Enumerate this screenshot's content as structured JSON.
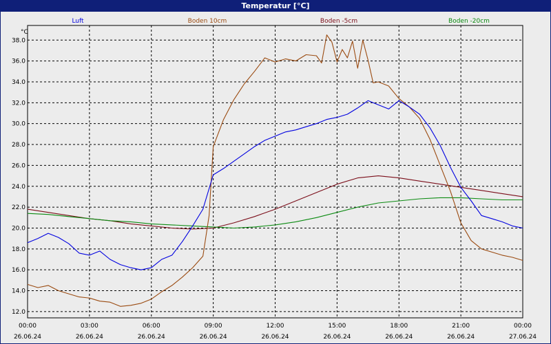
{
  "window": {
    "title": "Temperatur [°C]"
  },
  "colors": {
    "frame": "#0f1f78",
    "background": "#ececec",
    "grid": "#000000",
    "Luft": "#0000e0",
    "Boden 10cm": "#9a4a10",
    "Boden -5cm": "#7a0c18",
    "Boden -20cm": "#0a8a10"
  },
  "chart_data": {
    "type": "line",
    "title": "Temperatur [°C]",
    "ylabel": "°C",
    "ylim": [
      11.4,
      39.4
    ],
    "yticks": [
      "38.0",
      "36.0",
      "34.0",
      "32.0",
      "30.0",
      "28.0",
      "26.0",
      "24.0",
      "22.0",
      "20.0",
      "18.0",
      "16.0",
      "14.0",
      "12.0"
    ],
    "xlim": [
      0,
      24
    ],
    "xticks": [
      {
        "time": "00:00",
        "date": "26.06.24"
      },
      {
        "time": "03:00",
        "date": "26.06.24"
      },
      {
        "time": "06:00",
        "date": "26.06.24"
      },
      {
        "time": "09:00",
        "date": "26.06.24"
      },
      {
        "time": "12:00",
        "date": "26.06.24"
      },
      {
        "time": "15:00",
        "date": "26.06.24"
      },
      {
        "time": "18:00",
        "date": "26.06.24"
      },
      {
        "time": "21:00",
        "date": "26.06.24"
      },
      {
        "time": "00:00",
        "date": "27.06.24"
      }
    ],
    "grid": true,
    "legend": "top",
    "series": [
      {
        "name": "Luft",
        "x": [
          0,
          0.5,
          1,
          1.5,
          2,
          2.5,
          3,
          3.5,
          4,
          4.5,
          5,
          5.5,
          6,
          6.5,
          7,
          7.5,
          8,
          8.5,
          9,
          9.5,
          10,
          10.5,
          11,
          11.5,
          12,
          12.5,
          13,
          13.5,
          14,
          14.5,
          15,
          15.5,
          16,
          16.5,
          17,
          17.5,
          18,
          18.5,
          19,
          19.5,
          20,
          20.5,
          21,
          21.5,
          22,
          22.5,
          23,
          23.5,
          24
        ],
        "values": [
          18.6,
          19.0,
          19.5,
          19.1,
          18.5,
          17.6,
          17.4,
          17.8,
          17.0,
          16.5,
          16.2,
          16.0,
          16.2,
          17.0,
          17.4,
          18.7,
          20.2,
          21.8,
          25.1,
          25.7,
          26.4,
          27.1,
          27.8,
          28.4,
          28.8,
          29.2,
          29.4,
          29.7,
          30.0,
          30.4,
          30.6,
          30.9,
          31.5,
          32.2,
          31.8,
          31.4,
          32.2,
          31.6,
          30.9,
          29.6,
          27.9,
          25.8,
          23.9,
          22.6,
          21.2,
          20.9,
          20.6,
          20.2,
          20.0
        ]
      },
      {
        "name": "Boden 10cm",
        "x": [
          0,
          0.5,
          1,
          1.5,
          2,
          2.5,
          3,
          3.5,
          4,
          4.5,
          5,
          5.5,
          6,
          6.5,
          7,
          7.5,
          8,
          8.5,
          8.8,
          9,
          9.5,
          10,
          10.5,
          11,
          11.5,
          12,
          12.5,
          13,
          13.5,
          14,
          14.25,
          14.5,
          14.75,
          15,
          15.25,
          15.5,
          15.75,
          16,
          16.25,
          16.5,
          16.75,
          17,
          17.5,
          18,
          18.5,
          19,
          19.5,
          20,
          20.5,
          21,
          21.5,
          22,
          22.5,
          23,
          23.5,
          24
        ],
        "values": [
          14.6,
          14.3,
          14.5,
          14.0,
          13.7,
          13.4,
          13.3,
          13.0,
          12.9,
          12.5,
          12.6,
          12.8,
          13.2,
          13.9,
          14.5,
          15.3,
          16.2,
          17.3,
          21.2,
          27.8,
          30.4,
          32.3,
          33.8,
          35.0,
          36.3,
          35.9,
          36.2,
          36.0,
          36.6,
          36.5,
          35.8,
          38.5,
          37.8,
          35.9,
          37.1,
          36.3,
          37.9,
          35.3,
          38.0,
          36.1,
          33.9,
          34.0,
          33.6,
          32.4,
          31.6,
          30.5,
          28.5,
          26.0,
          23.5,
          20.5,
          18.8,
          18.0,
          17.7,
          17.4,
          17.2,
          16.9
        ]
      },
      {
        "name": "Boden -5cm",
        "x": [
          0,
          1,
          2,
          3,
          4,
          5,
          6,
          7,
          8,
          9,
          10,
          11,
          12,
          13,
          14,
          15,
          16,
          17,
          18,
          19,
          20,
          21,
          22,
          23,
          24
        ],
        "values": [
          21.8,
          21.5,
          21.2,
          20.9,
          20.7,
          20.4,
          20.2,
          20.0,
          19.9,
          20.0,
          20.5,
          21.1,
          21.8,
          22.6,
          23.4,
          24.2,
          24.8,
          25.0,
          24.8,
          24.5,
          24.2,
          23.9,
          23.6,
          23.3,
          23.0
        ]
      },
      {
        "name": "Boden -20cm",
        "x": [
          0,
          1,
          2,
          3,
          4,
          5,
          6,
          7,
          8,
          9,
          10,
          11,
          12,
          13,
          14,
          15,
          16,
          17,
          18,
          19,
          20,
          21,
          22,
          23,
          24
        ],
        "values": [
          21.4,
          21.3,
          21.1,
          20.9,
          20.7,
          20.6,
          20.4,
          20.3,
          20.2,
          20.1,
          20.0,
          20.1,
          20.3,
          20.6,
          21.0,
          21.5,
          22.0,
          22.4,
          22.6,
          22.8,
          22.9,
          22.9,
          22.8,
          22.7,
          22.7
        ]
      }
    ]
  }
}
